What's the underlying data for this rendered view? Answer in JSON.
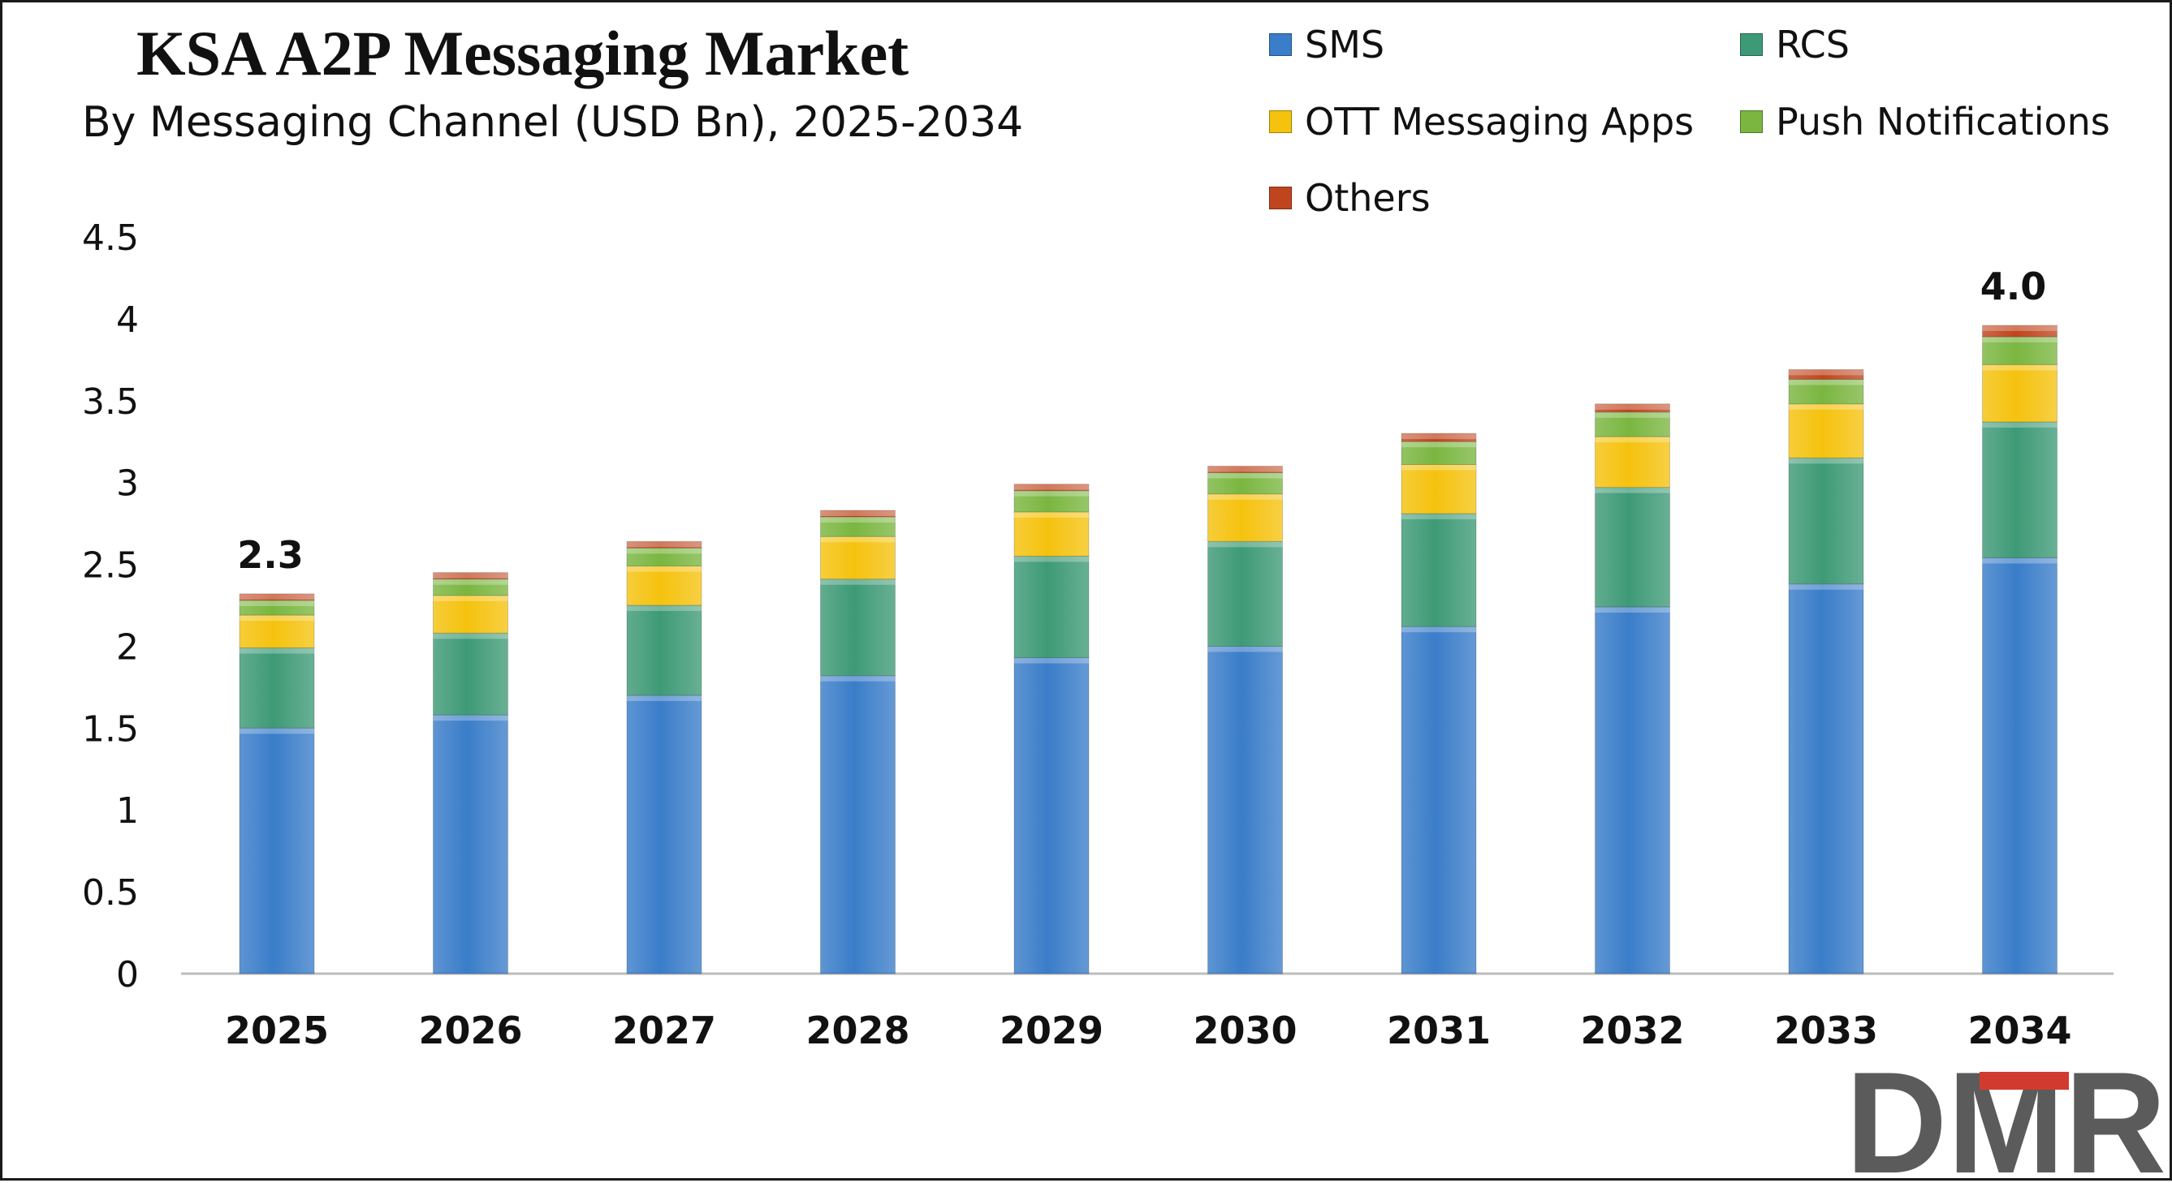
{
  "chart_data": {
    "type": "bar",
    "stacked": true,
    "title": "KSA A2P Messaging Market",
    "subtitle": "By Messaging Channel (USD Bn), 2025-2034",
    "xlabel": "",
    "ylabel": "",
    "ylim": [
      0,
      4.5
    ],
    "yticks": [
      "0",
      "0.5",
      "1",
      "1.5",
      "2",
      "2.5",
      "3",
      "3.5",
      "4",
      "4.5"
    ],
    "grid": false,
    "legend_position": "top-right",
    "categories": [
      "2025",
      "2026",
      "2027",
      "2028",
      "2029",
      "2030",
      "2031",
      "2032",
      "2033",
      "2034"
    ],
    "series": [
      {
        "name": "SMS",
        "color": "#3A7DC9",
        "values": [
          1.5,
          1.58,
          1.7,
          1.82,
          1.93,
          2.0,
          2.12,
          2.24,
          2.38,
          2.54
        ]
      },
      {
        "name": "RCS",
        "color": "#3E9A76",
        "values": [
          0.49,
          0.5,
          0.55,
          0.59,
          0.62,
          0.64,
          0.69,
          0.73,
          0.77,
          0.83
        ]
      },
      {
        "name": "OTT Messaging Apps",
        "color": "#F5C20E",
        "values": [
          0.2,
          0.23,
          0.24,
          0.26,
          0.27,
          0.29,
          0.3,
          0.31,
          0.33,
          0.35
        ]
      },
      {
        "name": "Push Notifications",
        "color": "#7AB640",
        "values": [
          0.09,
          0.1,
          0.11,
          0.12,
          0.13,
          0.13,
          0.14,
          0.15,
          0.15,
          0.17
        ]
      },
      {
        "name": "Others",
        "color": "#C0451E",
        "values": [
          0.04,
          0.04,
          0.04,
          0.04,
          0.04,
          0.04,
          0.05,
          0.05,
          0.06,
          0.07
        ]
      }
    ],
    "annotations": [
      {
        "category": "2025",
        "text": "2.3"
      },
      {
        "category": "2034",
        "text": "4.0"
      }
    ]
  },
  "logo": {
    "text": "DMR"
  }
}
